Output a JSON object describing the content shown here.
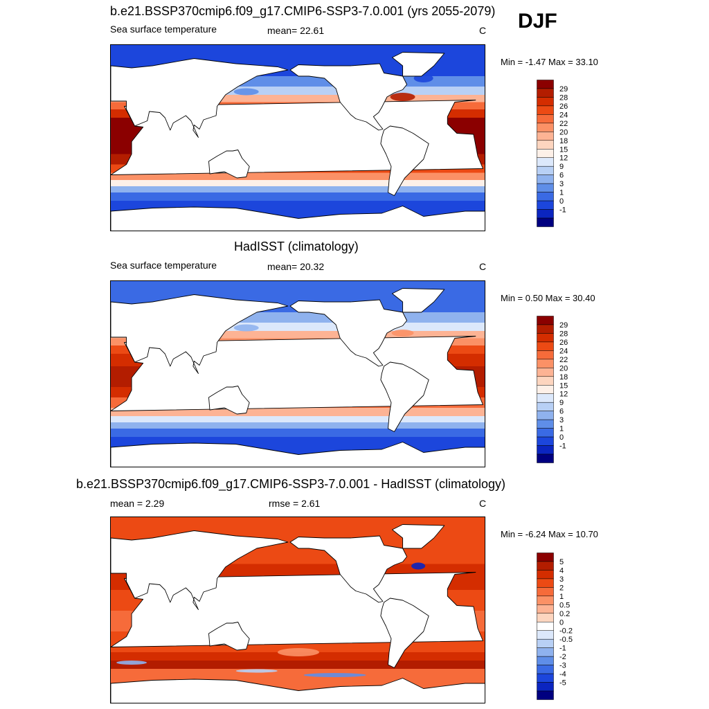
{
  "season": "DJF",
  "panels": [
    {
      "title": "b.e21.BSSP370cmip6.f09_g17.CMIP6-SSP3-7.0.001 (yrs 2055-2079)",
      "left_label": "Sea surface temperature",
      "center_label": "mean=  22.61",
      "unit": "C",
      "minmax": "Min =  -1.47 Max =  33.10",
      "colorbar": {
        "labels": [
          "29",
          "28",
          "26",
          "24",
          "22",
          "20",
          "18",
          "15",
          "12",
          "9",
          "6",
          "3",
          "1",
          "0",
          "-1"
        ],
        "colors": [
          "#8b0000",
          "#b31d00",
          "#d42d00",
          "#ec4a14",
          "#f66b3a",
          "#fb9166",
          "#fdb394",
          "#fdd5bf",
          "#fdf0e8",
          "#dce8fb",
          "#b8d0f5",
          "#8fb2ee",
          "#5f8ee8",
          "#3a6ae4",
          "#1c46dc",
          "#0b25c0",
          "#000080"
        ]
      },
      "field": "future"
    },
    {
      "title": "HadISST (climatology)",
      "left_label": "Sea surface temperature",
      "center_label": "mean=  20.32",
      "unit": "C",
      "minmax": "Min =   0.50 Max =  30.40",
      "colorbar": {
        "labels": [
          "29",
          "28",
          "26",
          "24",
          "22",
          "20",
          "18",
          "15",
          "12",
          "9",
          "6",
          "3",
          "1",
          "0",
          "-1"
        ],
        "colors": [
          "#8b0000",
          "#b31d00",
          "#d42d00",
          "#ec4a14",
          "#f66b3a",
          "#fb9166",
          "#fdb394",
          "#fdd5bf",
          "#fdf0e8",
          "#dce8fb",
          "#b8d0f5",
          "#8fb2ee",
          "#5f8ee8",
          "#3a6ae4",
          "#1c46dc",
          "#0b25c0",
          "#000080"
        ]
      },
      "field": "obs"
    },
    {
      "title": "b.e21.BSSP370cmip6.f09_g17.CMIP6-SSP3-7.0.001 - HadISST (climatology)",
      "left_label": "mean =   2.29",
      "center_label": "rmse =   2.61",
      "unit": "C",
      "minmax": "Min =  -6.24 Max =  10.70",
      "colorbar": {
        "labels": [
          "5",
          "4",
          "3",
          "2",
          "1",
          "0.5",
          "0.2",
          "0",
          "-0.2",
          "-0.5",
          "-1",
          "-2",
          "-3",
          "-4",
          "-5"
        ],
        "colors": [
          "#8b0000",
          "#b31d00",
          "#d42d00",
          "#ec4a14",
          "#f66b3a",
          "#fb9166",
          "#fdb394",
          "#fdd5bf",
          "#ffffff",
          "#dce8fb",
          "#b8d0f5",
          "#8fb2ee",
          "#5f8ee8",
          "#3a6ae4",
          "#1c46dc",
          "#0b25c0",
          "#000080"
        ]
      },
      "field": "diff"
    }
  ],
  "land_color": "#ffffff",
  "coastline_color": "#000000"
}
